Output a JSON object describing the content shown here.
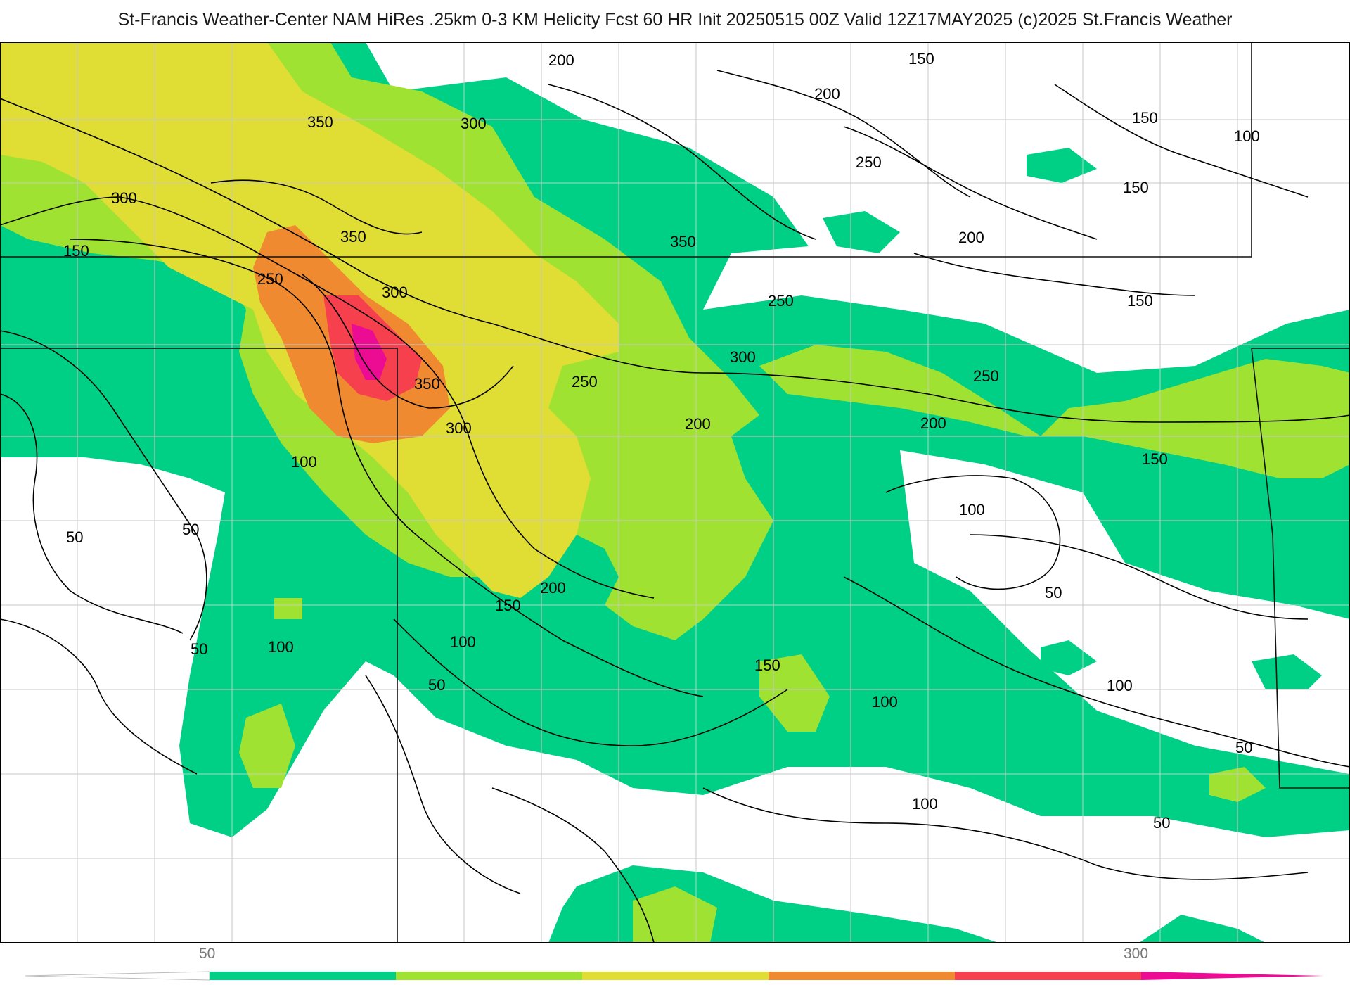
{
  "title": "St-Francis Weather-Center NAM HiRes .25km 0-3 KM Helicity Fcst 60 HR Init 20250515 00Z  Valid 12Z17MAY2025    (c)2025 St.Francis Weather",
  "colors": {
    "band_50_100": "#00cf86",
    "band_100_150": "#9fe232",
    "band_150_200": "#e0dd35",
    "band_200_250": "#ef8a30",
    "band_250_300": "#f6404e",
    "band_300_plus": "#ec0b93",
    "contour": "#000000",
    "boundary": "#111111",
    "county": "#c8c8c8"
  },
  "contour_labels": [
    {
      "text": "200"
    },
    {
      "text": "150"
    },
    {
      "text": "200"
    },
    {
      "text": "150"
    },
    {
      "text": "100"
    },
    {
      "text": "350"
    },
    {
      "text": "300"
    },
    {
      "text": "250"
    },
    {
      "text": "150"
    },
    {
      "text": "300"
    },
    {
      "text": "350"
    },
    {
      "text": "350"
    },
    {
      "text": "200"
    },
    {
      "text": "150"
    },
    {
      "text": "250"
    },
    {
      "text": "300"
    },
    {
      "text": "250"
    },
    {
      "text": "150"
    },
    {
      "text": "300"
    },
    {
      "text": "250"
    },
    {
      "text": "350"
    },
    {
      "text": "250"
    },
    {
      "text": "200"
    },
    {
      "text": "200"
    },
    {
      "text": "300"
    },
    {
      "text": "100"
    },
    {
      "text": "150"
    },
    {
      "text": "100"
    },
    {
      "text": "50"
    },
    {
      "text": "50"
    },
    {
      "text": "200"
    },
    {
      "text": "150"
    },
    {
      "text": "50"
    },
    {
      "text": "100"
    },
    {
      "text": "100"
    },
    {
      "text": "50"
    },
    {
      "text": "150"
    },
    {
      "text": "100"
    },
    {
      "text": "100"
    },
    {
      "text": "50"
    },
    {
      "text": "50"
    },
    {
      "text": "100"
    },
    {
      "text": "50"
    }
  ],
  "colorbar": {
    "tick_labels": [
      "50",
      "300"
    ]
  }
}
